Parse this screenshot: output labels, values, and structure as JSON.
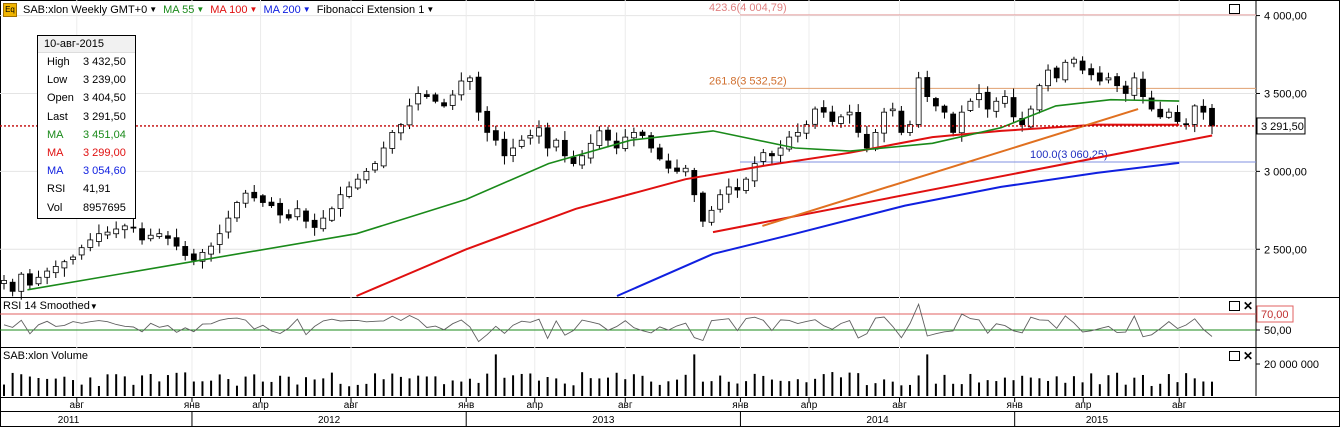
{
  "header": {
    "symbol": "SAB:xlon Weekly GMT+0",
    "ma55": "MA 55",
    "ma100": "MA 100",
    "ma200": "MA 200",
    "fib": "Fibonacci Extension 1",
    "logo": "Eq"
  },
  "colors": {
    "ma55": "#1a8a1a",
    "ma100": "#e01010",
    "ma200": "#1020e0",
    "fib": "#e07020",
    "bull": "#ffffff",
    "bear": "#000000"
  },
  "infobox": {
    "date": "10-авг-2015",
    "rows": [
      {
        "k": "High",
        "v": "3 432,50",
        "color": "#000000"
      },
      {
        "k": "Low",
        "v": "3 239,00",
        "color": "#000000"
      },
      {
        "k": "Open",
        "v": "3 404,50",
        "color": "#000000"
      },
      {
        "k": "Last",
        "v": "3 291,50",
        "color": "#000000"
      },
      {
        "k": "MA",
        "v": "3 451,04",
        "color": "#1a8a1a"
      },
      {
        "k": "MA",
        "v": "3 299,00",
        "color": "#e01010"
      },
      {
        "k": "MA",
        "v": "3 054,60",
        "color": "#1020e0"
      },
      {
        "k": "RSI",
        "v": "41,91",
        "color": "#000000"
      },
      {
        "k": "Vol",
        "v": "8957695",
        "color": "#000000"
      }
    ]
  },
  "panels": {
    "rsi_title": "RSI 14 Smoothed",
    "volume_title": "SAB:xlon Volume"
  },
  "chart_data": [
    {
      "type": "line",
      "title": "SAB:xlon Weekly GMT+0",
      "ylim": [
        2200,
        4100
      ],
      "yticks": [
        "4 000,00",
        "3 500,00",
        "3 000,00",
        "2 500,00"
      ],
      "ytick_values": [
        4000,
        3500,
        3000,
        2500
      ],
      "last_price_label": "3 291,50",
      "last_price": 3291.5,
      "fib_levels": [
        {
          "label": "423.6(4 004,79)",
          "value": 4004.79
        },
        {
          "label": "261.8(3 532,52)",
          "value": 3532.52
        },
        {
          "label": "100.0(3 060,25)",
          "value": 3060.25
        }
      ],
      "candles": [
        2300,
        2230,
        2340,
        2270,
        2320,
        2360,
        2390,
        2420,
        2450,
        2510,
        2560,
        2600,
        2610,
        2630,
        2650,
        2640,
        2560,
        2590,
        2600,
        2570,
        2520,
        2460,
        2430,
        2480,
        2520,
        2600,
        2700,
        2800,
        2860,
        2830,
        2800,
        2780,
        2720,
        2700,
        2760,
        2680,
        2640,
        2700,
        2760,
        2850,
        2900,
        2950,
        3000,
        3050,
        3150,
        3250,
        3300,
        3420,
        3500,
        3480,
        3450,
        3420,
        3490,
        3580,
        3600,
        3380,
        3250,
        3200,
        3100,
        3150,
        3200,
        3230,
        3280,
        3150,
        3200,
        3100,
        3050,
        3100,
        3180,
        3260,
        3200,
        3150,
        3220,
        3250,
        3230,
        3150,
        3080,
        3020,
        3000,
        3020,
        2850,
        2680,
        2750,
        2850,
        2900,
        2880,
        2950,
        3050,
        3120,
        3100,
        3150,
        3220,
        3250,
        3300,
        3400,
        3380,
        3320,
        3350,
        3380,
        3250,
        3150,
        3250,
        3380,
        3400,
        3250,
        3300,
        3600,
        3480,
        3420,
        3380,
        3250,
        3380,
        3450,
        3500,
        3400,
        3450,
        3480,
        3350,
        3300,
        3400,
        3550,
        3650,
        3600,
        3700,
        3720,
        3650,
        3620,
        3580,
        3600,
        3550,
        3500,
        3600,
        3480,
        3400,
        3350,
        3380,
        3320,
        3300,
        3420,
        3380,
        3291.5
      ],
      "ma55": [
        [
          2011.4,
          2240
        ],
        [
          2012.0,
          2420
        ],
        [
          2012.6,
          2600
        ],
        [
          2013.0,
          2820
        ],
        [
          2013.3,
          3050
        ],
        [
          2013.6,
          3200
        ],
        [
          2013.9,
          3260
        ],
        [
          2014.2,
          3150
        ],
        [
          2014.4,
          3130
        ],
        [
          2014.7,
          3180
        ],
        [
          2014.95,
          3280
        ],
        [
          2015.15,
          3420
        ],
        [
          2015.35,
          3460
        ],
        [
          2015.6,
          3451.04
        ]
      ],
      "ma100": [
        [
          2012.6,
          2200
        ],
        [
          2013.0,
          2500
        ],
        [
          2013.4,
          2760
        ],
        [
          2013.8,
          2950
        ],
        [
          2014.1,
          3040
        ],
        [
          2014.4,
          3120
        ],
        [
          2014.7,
          3220
        ],
        [
          2014.95,
          3260
        ],
        [
          2015.3,
          3300
        ],
        [
          2015.6,
          3299.0
        ]
      ],
      "ma200": [
        [
          2013.55,
          2200
        ],
        [
          2013.9,
          2470
        ],
        [
          2014.2,
          2600
        ],
        [
          2014.6,
          2780
        ],
        [
          2014.95,
          2900
        ],
        [
          2015.3,
          2990
        ],
        [
          2015.6,
          3054.6
        ]
      ],
      "trendline_red": [
        [
          2013.9,
          2610
        ],
        [
          2015.72,
          3230
        ]
      ],
      "trendline_fib": [
        [
          2014.08,
          2650
        ],
        [
          2015.45,
          3400
        ]
      ]
    },
    {
      "type": "line",
      "title": "RSI 14 Smoothed",
      "ylim": [
        30,
        90
      ],
      "yticks": [
        "70,00",
        "50,00"
      ],
      "ytick_values": [
        70,
        50
      ],
      "current": 41.91
    },
    {
      "type": "bar",
      "title": "SAB:xlon Volume",
      "yticks": [
        "20 000 000"
      ],
      "ytick_values": [
        20000000
      ],
      "current": 8957695
    }
  ],
  "xaxis": {
    "months": [
      {
        "label": "авг",
        "t": 2011.58
      },
      {
        "label": "янв",
        "t": 2012.0
      },
      {
        "label": "апр",
        "t": 2012.25
      },
      {
        "label": "авг",
        "t": 2012.58
      },
      {
        "label": "янв",
        "t": 2013.0
      },
      {
        "label": "апр",
        "t": 2013.25
      },
      {
        "label": "авг",
        "t": 2013.58
      },
      {
        "label": "янв",
        "t": 2014.0
      },
      {
        "label": "апр",
        "t": 2014.25
      },
      {
        "label": "авг",
        "t": 2014.58
      },
      {
        "label": "янв",
        "t": 2015.0
      },
      {
        "label": "апр",
        "t": 2015.25
      },
      {
        "label": "авг",
        "t": 2015.6
      }
    ],
    "years": [
      {
        "label": "2011",
        "t": 2011.55
      },
      {
        "label": "2012",
        "t": 2012.5
      },
      {
        "label": "2013",
        "t": 2013.5
      },
      {
        "label": "2014",
        "t": 2014.5
      },
      {
        "label": "2015",
        "t": 2015.3
      }
    ]
  }
}
